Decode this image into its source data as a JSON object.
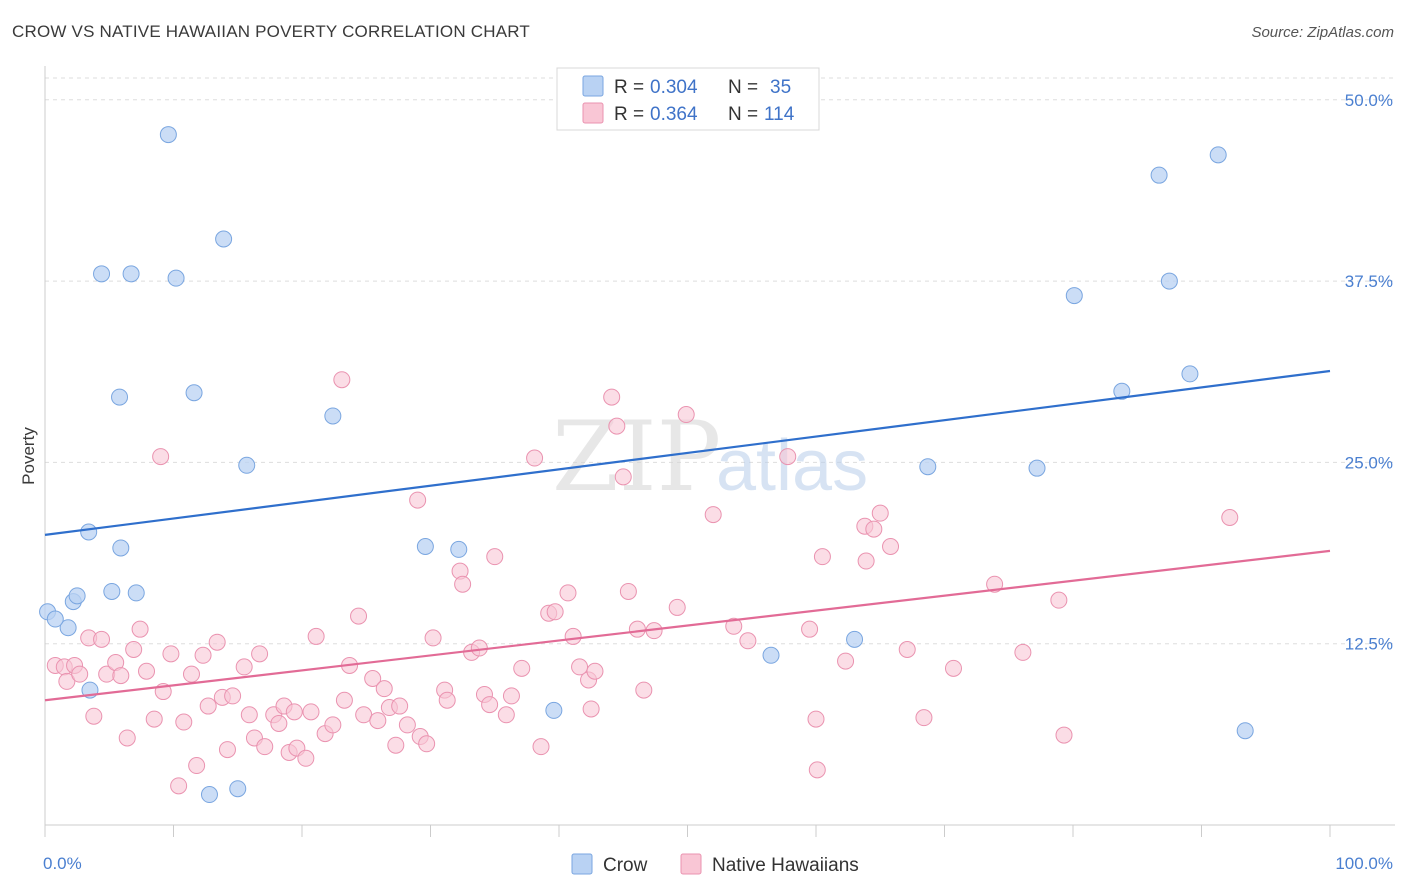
{
  "title": "CROW VS NATIVE HAWAIIAN POVERTY CORRELATION CHART",
  "source": "Source: ZipAtlas.com",
  "watermark": {
    "zip": "ZIP",
    "atlas": "atlas"
  },
  "legend": {
    "rows": [
      {
        "r_label": "R =",
        "r_value": "0.304",
        "n_label": "N =",
        "n_value": "35",
        "color": "#a9c8f0"
      },
      {
        "r_label": "R =",
        "r_value": "0.364",
        "n_label": "N =",
        "n_value": "114",
        "color": "#f7b8cc"
      }
    ]
  },
  "colors": {
    "crow_fill": "#b9d2f3",
    "crow_stroke": "#7aa6e0",
    "crow_line": "#2f6fcc",
    "nh_fill": "#f9c6d5",
    "nh_stroke": "#ea93b0",
    "nh_line": "#e26b96"
  },
  "chart_data": {
    "type": "scatter",
    "ylabel": "Poverty",
    "xlim": [
      0,
      100
    ],
    "ylim": [
      0,
      51.5
    ],
    "x_tick_labels": [
      "0.0%",
      "100.0%"
    ],
    "y_ticks": [
      12.5,
      25.0,
      37.5,
      50.0
    ],
    "y_tick_labels": [
      "12.5%",
      "25.0%",
      "37.5%",
      "50.0%"
    ],
    "grid": true,
    "series": [
      {
        "name": "Crow",
        "trend": [
          [
            0,
            20.0
          ],
          [
            100,
            31.3
          ]
        ],
        "points": [
          [
            0.2,
            14.7
          ],
          [
            1.8,
            13.6
          ],
          [
            2.2,
            15.4
          ],
          [
            2.5,
            15.8
          ],
          [
            3.4,
            20.2
          ],
          [
            3.5,
            9.3
          ],
          [
            4.4,
            38.0
          ],
          [
            5.2,
            16.1
          ],
          [
            5.8,
            29.5
          ],
          [
            5.9,
            19.1
          ],
          [
            6.7,
            38.0
          ],
          [
            7.1,
            16.0
          ],
          [
            9.6,
            47.6
          ],
          [
            10.2,
            37.7
          ],
          [
            11.6,
            29.8
          ],
          [
            12.8,
            2.1
          ],
          [
            13.9,
            40.4
          ],
          [
            15.0,
            2.5
          ],
          [
            15.7,
            24.8
          ],
          [
            22.4,
            28.2
          ],
          [
            29.6,
            19.2
          ],
          [
            32.2,
            19.0
          ],
          [
            39.6,
            7.9
          ],
          [
            56.5,
            11.7
          ],
          [
            63.0,
            12.8
          ],
          [
            68.7,
            24.7
          ],
          [
            77.2,
            24.6
          ],
          [
            80.1,
            36.5
          ],
          [
            83.8,
            29.9
          ],
          [
            86.7,
            44.8
          ],
          [
            87.5,
            37.5
          ],
          [
            89.1,
            31.1
          ],
          [
            91.3,
            46.2
          ],
          [
            93.4,
            6.5
          ],
          [
            0.8,
            14.2
          ]
        ]
      },
      {
        "name": "Native Hawaiians",
        "trend": [
          [
            0,
            8.6
          ],
          [
            100,
            18.9
          ]
        ],
        "points": [
          [
            0.8,
            11.0
          ],
          [
            1.5,
            10.9
          ],
          [
            1.7,
            9.9
          ],
          [
            2.3,
            11.0
          ],
          [
            2.7,
            10.4
          ],
          [
            3.4,
            12.9
          ],
          [
            3.8,
            7.5
          ],
          [
            4.4,
            12.8
          ],
          [
            4.8,
            10.4
          ],
          [
            5.5,
            11.2
          ],
          [
            5.9,
            10.3
          ],
          [
            6.4,
            6.0
          ],
          [
            6.9,
            12.1
          ],
          [
            7.4,
            13.5
          ],
          [
            7.9,
            10.6
          ],
          [
            8.5,
            7.3
          ],
          [
            9.0,
            25.4
          ],
          [
            9.2,
            9.2
          ],
          [
            9.8,
            11.8
          ],
          [
            10.4,
            2.7
          ],
          [
            10.8,
            7.1
          ],
          [
            11.4,
            10.4
          ],
          [
            11.8,
            4.1
          ],
          [
            12.3,
            11.7
          ],
          [
            12.7,
            8.2
          ],
          [
            13.4,
            12.6
          ],
          [
            13.8,
            8.8
          ],
          [
            14.2,
            5.2
          ],
          [
            14.6,
            8.9
          ],
          [
            15.5,
            10.9
          ],
          [
            15.9,
            7.6
          ],
          [
            16.3,
            6.0
          ],
          [
            16.7,
            11.8
          ],
          [
            17.1,
            5.4
          ],
          [
            17.8,
            7.6
          ],
          [
            18.2,
            7.0
          ],
          [
            18.6,
            8.2
          ],
          [
            19.0,
            5.0
          ],
          [
            19.4,
            7.8
          ],
          [
            19.6,
            5.3
          ],
          [
            20.3,
            4.6
          ],
          [
            20.7,
            7.8
          ],
          [
            21.1,
            13.0
          ],
          [
            21.8,
            6.3
          ],
          [
            22.4,
            6.9
          ],
          [
            23.1,
            30.7
          ],
          [
            23.3,
            8.6
          ],
          [
            23.7,
            11.0
          ],
          [
            24.4,
            14.4
          ],
          [
            24.8,
            7.6
          ],
          [
            25.5,
            10.1
          ],
          [
            25.9,
            7.2
          ],
          [
            26.4,
            9.4
          ],
          [
            26.8,
            8.1
          ],
          [
            27.3,
            5.5
          ],
          [
            27.6,
            8.2
          ],
          [
            28.2,
            6.9
          ],
          [
            29.0,
            22.4
          ],
          [
            29.2,
            6.1
          ],
          [
            29.7,
            5.6
          ],
          [
            30.2,
            12.9
          ],
          [
            31.1,
            9.3
          ],
          [
            31.3,
            8.6
          ],
          [
            32.3,
            17.5
          ],
          [
            32.5,
            16.6
          ],
          [
            33.2,
            11.9
          ],
          [
            33.8,
            12.2
          ],
          [
            34.2,
            9.0
          ],
          [
            34.6,
            8.3
          ],
          [
            35.0,
            18.5
          ],
          [
            35.9,
            7.6
          ],
          [
            36.3,
            8.9
          ],
          [
            37.1,
            10.8
          ],
          [
            38.1,
            25.3
          ],
          [
            38.6,
            5.4
          ],
          [
            39.2,
            14.6
          ],
          [
            39.7,
            14.7
          ],
          [
            40.7,
            16.0
          ],
          [
            41.1,
            13.0
          ],
          [
            41.6,
            10.9
          ],
          [
            42.3,
            10.0
          ],
          [
            42.5,
            8.0
          ],
          [
            42.8,
            10.6
          ],
          [
            44.1,
            29.5
          ],
          [
            44.5,
            27.5
          ],
          [
            45.0,
            24.0
          ],
          [
            45.4,
            16.1
          ],
          [
            46.1,
            13.5
          ],
          [
            46.6,
            9.3
          ],
          [
            47.4,
            13.4
          ],
          [
            49.2,
            15.0
          ],
          [
            49.9,
            28.3
          ],
          [
            52.0,
            21.4
          ],
          [
            53.6,
            13.7
          ],
          [
            54.7,
            12.7
          ],
          [
            57.8,
            25.4
          ],
          [
            59.5,
            13.5
          ],
          [
            60.0,
            7.3
          ],
          [
            60.5,
            18.5
          ],
          [
            60.1,
            3.8
          ],
          [
            62.3,
            11.3
          ],
          [
            63.8,
            20.6
          ],
          [
            63.9,
            18.2
          ],
          [
            64.5,
            20.4
          ],
          [
            65.0,
            21.5
          ],
          [
            65.8,
            19.2
          ],
          [
            67.1,
            12.1
          ],
          [
            68.4,
            7.4
          ],
          [
            70.7,
            10.8
          ],
          [
            73.9,
            16.6
          ],
          [
            76.1,
            11.9
          ],
          [
            78.9,
            15.5
          ],
          [
            79.3,
            6.2
          ],
          [
            92.2,
            21.2
          ]
        ]
      }
    ]
  },
  "bottom_legend": [
    {
      "label": "Crow"
    },
    {
      "label": "Native Hawaiians"
    }
  ]
}
